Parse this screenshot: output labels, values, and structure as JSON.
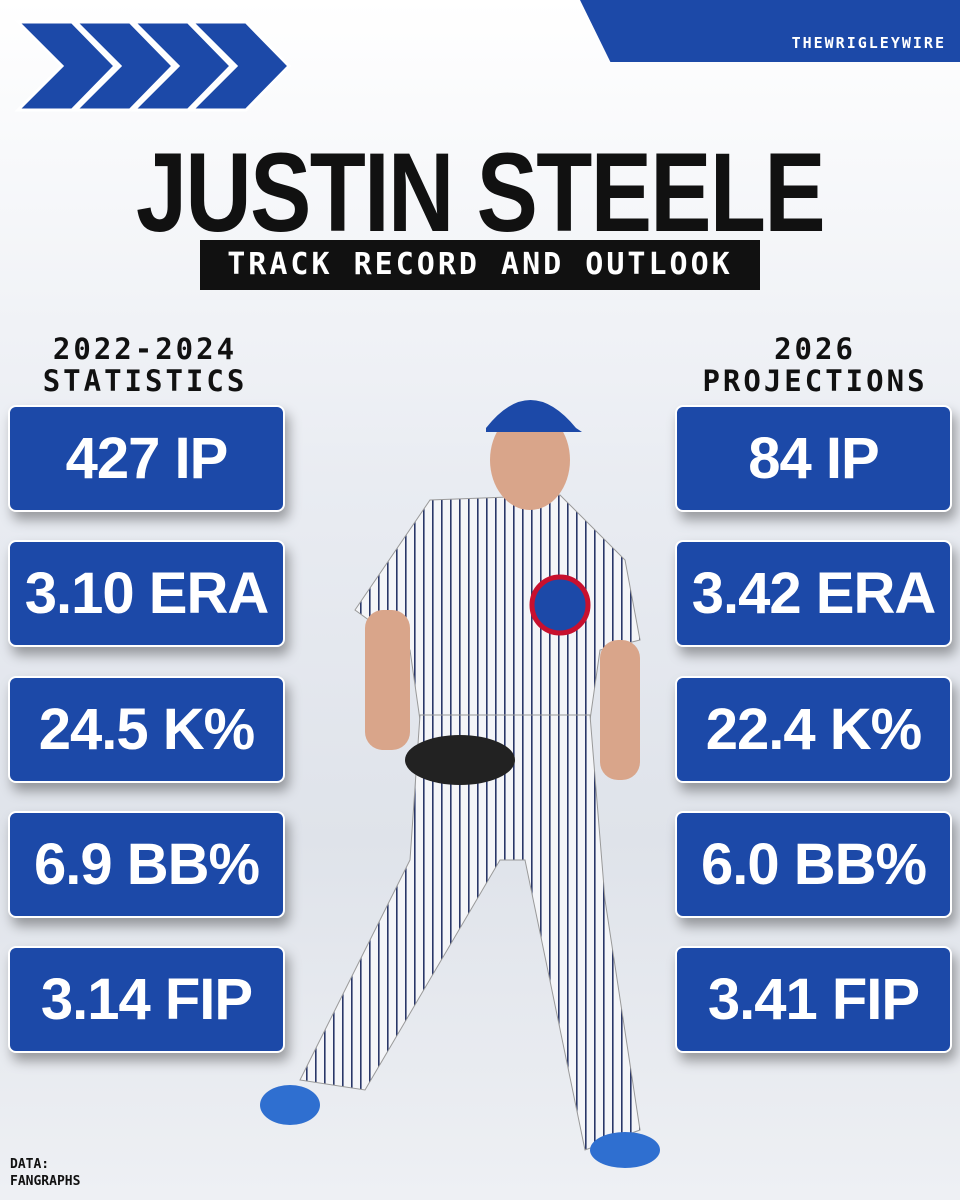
{
  "brand": "THEWRIGLEYWIRE",
  "header": {
    "title": "JUSTIN STEELE",
    "subtitle": "TRACK RECORD AND OUTLOOK"
  },
  "left": {
    "heading": [
      "2022-2024",
      "STATISTICS"
    ],
    "stats": [
      "427 IP",
      "3.10 ERA",
      "24.5 K%",
      "6.9 BB%",
      "3.14 FIP"
    ]
  },
  "right": {
    "heading": [
      "2026",
      "PROJECTIONS"
    ],
    "stats": [
      "84 IP",
      "3.42 ERA",
      "22.4 K%",
      "6.0 BB%",
      "3.41 FIP"
    ]
  },
  "source": [
    "DATA:",
    "FANGRAPHS"
  ]
}
